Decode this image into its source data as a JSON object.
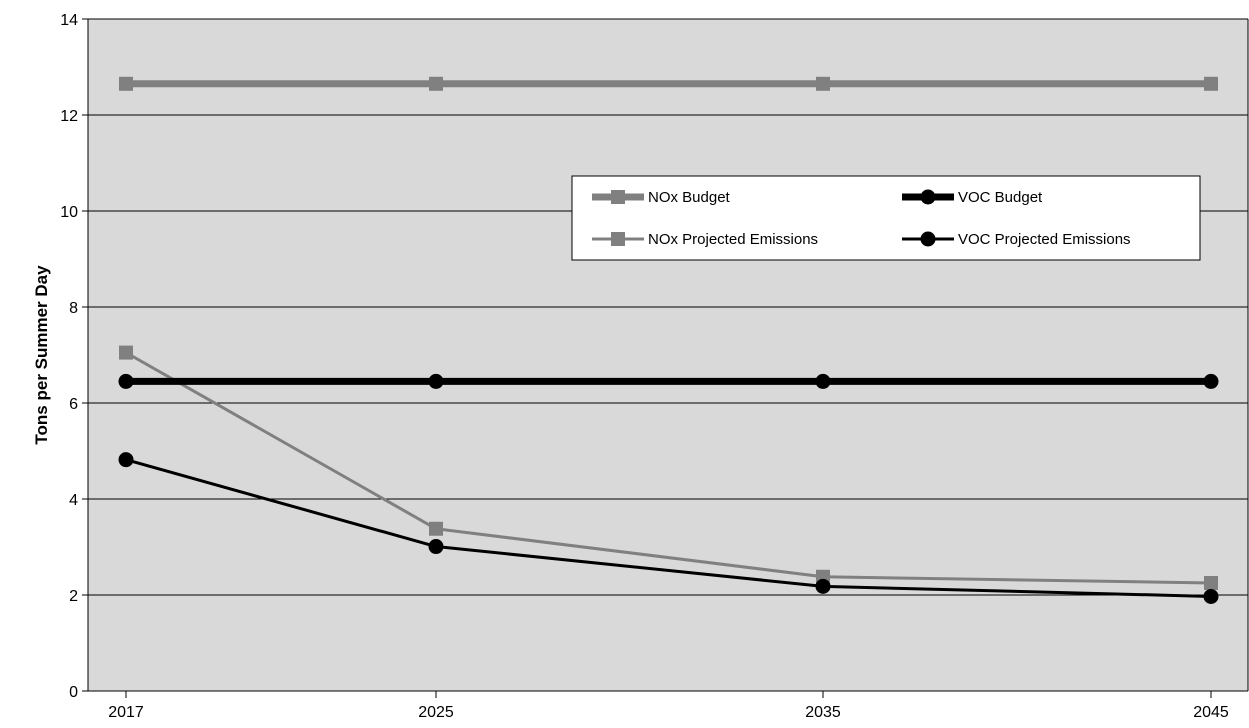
{
  "chart_data": {
    "type": "line",
    "title": "",
    "xlabel": "",
    "ylabel": "Tons per Summer Day",
    "x": [
      "2017",
      "2025",
      "2035",
      "2045"
    ],
    "x_values": [
      2017,
      2025,
      2035,
      2045
    ],
    "xlim": [
      2017,
      2045
    ],
    "ylim": [
      0,
      14
    ],
    "yticks": [
      0,
      2,
      4,
      6,
      8,
      10,
      12,
      14
    ],
    "grid": "horizontal",
    "plot_background": "#d9d9d9",
    "legend_position": "center-right",
    "series": [
      {
        "name": "NOx Budget",
        "values": [
          12.65,
          12.65,
          12.65,
          12.65
        ],
        "color": "#808080",
        "marker": "square",
        "style": "thick"
      },
      {
        "name": "NOx Projected Emissions",
        "values": [
          7.05,
          3.38,
          2.38,
          2.25
        ],
        "color": "#808080",
        "marker": "square",
        "style": "thin"
      },
      {
        "name": "VOC Budget",
        "values": [
          6.45,
          6.45,
          6.45,
          6.45
        ],
        "color": "#000000",
        "marker": "circle",
        "style": "thick"
      },
      {
        "name": "VOC Projected Emissions",
        "values": [
          4.82,
          3.01,
          2.18,
          1.97
        ],
        "color": "#000000",
        "marker": "circle",
        "style": "thin"
      }
    ]
  }
}
